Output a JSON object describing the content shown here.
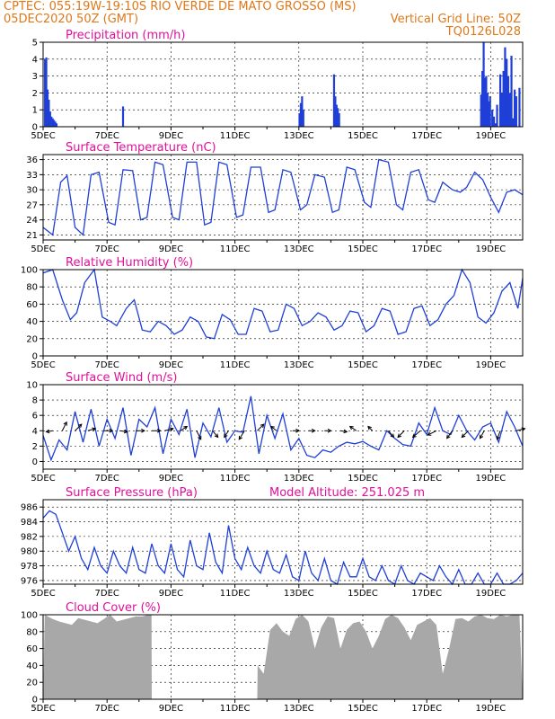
{
  "header": {
    "line1_left": "CPTEC:   055:19W-19:10S  RIO VERDE DE MATO GROSSO (MS)",
    "line2_left": "05DEC2020 50Z (GMT)",
    "line2_right": "Vertical Grid Line: 50Z",
    "line3_right": "TQ0126L028"
  },
  "colors": {
    "header": "#e07818",
    "title": "#e0109a",
    "series": "#1f3fd8",
    "cloud": "#a8a8a8"
  },
  "x_labels": [
    "5DEC",
    "7DEC",
    "9DEC",
    "11DEC",
    "13DEC",
    "15DEC",
    "17DEC",
    "19DEC"
  ],
  "chart_data": [
    {
      "id": "precip",
      "type": "bar",
      "title": "Precipitation (mm/h)",
      "xlabel": "",
      "ylabel": "",
      "ylim": [
        0,
        5
      ],
      "yticks": [
        0,
        1,
        2,
        3,
        4,
        5
      ],
      "xlim": [
        0,
        15
      ],
      "x_unit": "days since 05DEC 00Z",
      "x": [
        0.06,
        0.1,
        0.14,
        0.18,
        0.22,
        0.26,
        0.3,
        0.34,
        0.38,
        0.42,
        2.5,
        8.02,
        8.06,
        8.1,
        8.14,
        9.1,
        9.14,
        9.18,
        9.22,
        9.26,
        13.7,
        13.74,
        13.78,
        13.82,
        13.86,
        13.9,
        13.94,
        13.98,
        14.05,
        14.1,
        14.15,
        14.2,
        14.3,
        14.35,
        14.4,
        14.45,
        14.5,
        14.55,
        14.6,
        14.65,
        14.7,
        14.75,
        14.8,
        14.9
      ],
      "values": [
        4.0,
        4.1,
        2.2,
        1.6,
        0.9,
        0.6,
        0.5,
        0.4,
        0.3,
        0.2,
        1.2,
        0.8,
        1.4,
        1.8,
        1.0,
        3.1,
        1.8,
        1.3,
        1.1,
        0.8,
        1.9,
        3.3,
        5.0,
        2.9,
        3.0,
        2.0,
        1.5,
        1.8,
        1.0,
        0.6,
        0.2,
        1.3,
        3.1,
        2.0,
        3.3,
        4.7,
        4.0,
        3.0,
        2.0,
        4.2,
        0.5,
        2.2,
        1.8,
        2.3
      ]
    },
    {
      "id": "temp",
      "type": "line",
      "title": "Surface Temperature (nC)",
      "xlabel": "",
      "ylabel": "",
      "ylim": [
        20,
        37
      ],
      "yticks": [
        21,
        24,
        27,
        30,
        33,
        36
      ],
      "xlim": [
        0,
        15
      ],
      "x_unit": "days since 05DEC 00Z",
      "x": [
        0,
        0.3,
        0.55,
        0.75,
        1.0,
        1.25,
        1.5,
        1.75,
        2.05,
        2.25,
        2.5,
        2.8,
        3.05,
        3.25,
        3.5,
        3.75,
        4.05,
        4.25,
        4.5,
        4.8,
        5.05,
        5.25,
        5.5,
        5.75,
        6.05,
        6.25,
        6.5,
        6.8,
        7.05,
        7.25,
        7.5,
        7.75,
        8.05,
        8.25,
        8.5,
        8.8,
        9.05,
        9.25,
        9.5,
        9.75,
        10.05,
        10.25,
        10.5,
        10.8,
        11.05,
        11.25,
        11.5,
        11.75,
        12.05,
        12.25,
        12.5,
        12.8,
        13.05,
        13.25,
        13.5,
        13.75,
        14.0,
        14.25,
        14.5,
        14.75,
        15.0
      ],
      "values": [
        22.5,
        21.0,
        31.5,
        32.8,
        22.5,
        21.0,
        33.0,
        33.5,
        23.5,
        23.0,
        34.0,
        33.8,
        24.0,
        24.5,
        35.5,
        35.0,
        24.5,
        24.0,
        35.5,
        35.5,
        23.0,
        23.5,
        35.5,
        35.0,
        24.5,
        25.0,
        34.5,
        34.5,
        25.5,
        26.0,
        34.0,
        33.5,
        26.0,
        27.0,
        33.0,
        32.5,
        25.5,
        26.0,
        34.5,
        34.0,
        27.5,
        26.5,
        36.0,
        35.5,
        27.0,
        26.0,
        33.5,
        34.0,
        28.0,
        27.5,
        31.5,
        30.0,
        29.5,
        30.5,
        33.5,
        32.0,
        28.5,
        25.5,
        29.5,
        30.0,
        29.0
      ]
    },
    {
      "id": "rh",
      "type": "line",
      "title": "Relative Humidity (%)",
      "xlabel": "",
      "ylabel": "",
      "ylim": [
        0,
        100
      ],
      "yticks": [
        0,
        20,
        40,
        60,
        80,
        100
      ],
      "xlim": [
        0,
        15
      ],
      "x_unit": "days since 05DEC 00Z",
      "x": [
        0,
        0.3,
        0.6,
        0.85,
        1.05,
        1.3,
        1.6,
        1.85,
        2.1,
        2.3,
        2.6,
        2.85,
        3.1,
        3.35,
        3.6,
        3.85,
        4.1,
        4.35,
        4.6,
        4.85,
        5.1,
        5.35,
        5.6,
        5.85,
        6.1,
        6.35,
        6.6,
        6.85,
        7.1,
        7.35,
        7.6,
        7.85,
        8.1,
        8.35,
        8.6,
        8.85,
        9.1,
        9.35,
        9.6,
        9.85,
        10.1,
        10.35,
        10.6,
        10.85,
        11.1,
        11.35,
        11.6,
        11.85,
        12.1,
        12.35,
        12.6,
        12.85,
        13.1,
        13.35,
        13.6,
        13.85,
        14.1,
        14.35,
        14.6,
        14.85,
        15.0
      ],
      "values": [
        96,
        100,
        65,
        42,
        50,
        85,
        100,
        45,
        40,
        35,
        55,
        65,
        30,
        28,
        40,
        35,
        25,
        30,
        45,
        40,
        22,
        20,
        48,
        42,
        25,
        25,
        55,
        52,
        28,
        30,
        60,
        55,
        35,
        40,
        50,
        45,
        30,
        35,
        52,
        50,
        28,
        35,
        55,
        52,
        25,
        28,
        55,
        58,
        35,
        42,
        60,
        70,
        100,
        85,
        45,
        38,
        50,
        75,
        85,
        55,
        90
      ]
    },
    {
      "id": "wind",
      "type": "line",
      "title": "Surface Wind (m/s)",
      "xlabel": "",
      "ylabel": "",
      "ylim": [
        -1,
        10
      ],
      "yticks": [
        0,
        2,
        4,
        6,
        8,
        10
      ],
      "xlim": [
        0,
        15
      ],
      "x_unit": "days since 05DEC 00Z",
      "x": [
        0,
        0.25,
        0.5,
        0.75,
        1.0,
        1.25,
        1.5,
        1.75,
        2.0,
        2.25,
        2.5,
        2.75,
        3.0,
        3.25,
        3.5,
        3.75,
        4.0,
        4.25,
        4.5,
        4.75,
        5.0,
        5.25,
        5.5,
        5.75,
        6.0,
        6.25,
        6.5,
        6.75,
        7.0,
        7.25,
        7.5,
        7.75,
        8.0,
        8.25,
        8.5,
        8.75,
        9.0,
        9.25,
        9.5,
        9.75,
        10.0,
        10.25,
        10.5,
        10.75,
        11.0,
        11.25,
        11.5,
        11.75,
        12.0,
        12.25,
        12.5,
        12.75,
        13.0,
        13.25,
        13.5,
        13.75,
        14.0,
        14.25,
        14.5,
        14.75,
        15.0
      ],
      "values": [
        3.4,
        0.2,
        2.8,
        1.5,
        6.5,
        2.5,
        6.8,
        2.0,
        5.5,
        3.0,
        7.0,
        0.8,
        5.5,
        4.5,
        7.0,
        1.0,
        5.5,
        3.5,
        6.8,
        0.5,
        5.0,
        3.2,
        7.0,
        2.5,
        4.0,
        3.8,
        8.5,
        1.0,
        6.0,
        3.0,
        6.2,
        1.5,
        3.0,
        0.8,
        0.5,
        1.5,
        1.2,
        2.0,
        2.5,
        2.3,
        2.6,
        2.0,
        1.5,
        4.0,
        3.0,
        2.2,
        2.0,
        5.0,
        3.5,
        7.0,
        4.0,
        3.5,
        6.0,
        4.0,
        2.8,
        4.5,
        5.0,
        2.5,
        6.5,
        4.5,
        2.0
      ]
    },
    {
      "id": "pressure",
      "type": "line",
      "title": "Surface Pressure (hPa)",
      "subtitle": "Model Altitude: 251.025 m",
      "xlabel": "",
      "ylabel": "",
      "ylim": [
        975.5,
        987
      ],
      "yticks": [
        976,
        978,
        980,
        982,
        984,
        986
      ],
      "xlim": [
        0,
        15
      ],
      "x_unit": "days since 05DEC 00Z",
      "x": [
        0,
        0.2,
        0.4,
        0.6,
        0.8,
        1.0,
        1.2,
        1.4,
        1.6,
        1.8,
        2.0,
        2.2,
        2.4,
        2.6,
        2.8,
        3.0,
        3.2,
        3.4,
        3.6,
        3.8,
        4.0,
        4.2,
        4.4,
        4.6,
        4.8,
        5.0,
        5.2,
        5.4,
        5.6,
        5.8,
        6.0,
        6.2,
        6.4,
        6.6,
        6.8,
        7.0,
        7.2,
        7.4,
        7.6,
        7.8,
        8.0,
        8.2,
        8.4,
        8.6,
        8.8,
        9.0,
        9.2,
        9.4,
        9.6,
        9.8,
        10.0,
        10.2,
        10.4,
        10.6,
        10.8,
        11.0,
        11.2,
        11.4,
        11.6,
        11.8,
        12.0,
        12.2,
        12.4,
        12.6,
        12.8,
        13.0,
        13.2,
        13.4,
        13.6,
        13.8,
        14.0,
        14.2,
        14.4,
        14.6,
        14.8,
        15.0
      ],
      "values": [
        984.5,
        985.5,
        985.0,
        982.5,
        980.0,
        982.0,
        979.0,
        977.5,
        980.5,
        978.0,
        977.0,
        980.0,
        978.0,
        977.0,
        980.5,
        977.5,
        977.0,
        981.0,
        978.0,
        977.0,
        981.0,
        977.5,
        976.5,
        981.5,
        978.0,
        977.5,
        982.5,
        978.5,
        977.0,
        983.5,
        979.0,
        977.5,
        980.5,
        978.0,
        977.0,
        980.0,
        977.5,
        977.0,
        979.5,
        976.5,
        976.0,
        980.0,
        977.0,
        976.0,
        979.0,
        976.0,
        975.5,
        978.5,
        976.5,
        976.5,
        979.0,
        976.5,
        976.0,
        978.0,
        976.0,
        975.5,
        978.0,
        976.0,
        975.5,
        977.0,
        976.5,
        976.0,
        978.0,
        976.5,
        975.5,
        977.5,
        975.5,
        975.0,
        977.0,
        975.5,
        975.5,
        977.0,
        975.5,
        975.0,
        976.0,
        977.0
      ]
    },
    {
      "id": "cloud",
      "type": "area",
      "title": "Cloud Cover (%)",
      "xlabel": "",
      "ylabel": "",
      "ylim": [
        0,
        100
      ],
      "yticks": [
        0,
        20,
        40,
        60,
        80,
        100
      ],
      "xlim": [
        0,
        15
      ],
      "x_unit": "days since 05DEC 00Z",
      "x": [
        0,
        0.05,
        0.3,
        0.5,
        0.7,
        0.9,
        1.1,
        1.3,
        1.5,
        1.7,
        1.9,
        2.1,
        2.3,
        2.5,
        2.7,
        2.9,
        3.1,
        3.3,
        3.39,
        3.4,
        6.7,
        6.71,
        6.9,
        7.1,
        7.3,
        7.5,
        7.7,
        7.9,
        8.1,
        8.3,
        8.5,
        8.7,
        8.9,
        9.1,
        9.3,
        9.5,
        9.7,
        9.9,
        10.1,
        10.3,
        10.5,
        10.7,
        10.9,
        11.1,
        11.3,
        11.5,
        11.7,
        11.9,
        12.1,
        12.3,
        12.5,
        12.7,
        12.9,
        13.1,
        13.3,
        13.5,
        13.7,
        13.9,
        14.1,
        14.3,
        14.5,
        14.7,
        14.9,
        15.0
      ],
      "values": [
        0,
        100,
        95,
        92,
        90,
        88,
        96,
        94,
        92,
        90,
        95,
        100,
        92,
        94,
        96,
        98,
        98,
        100,
        100,
        0,
        0,
        40,
        30,
        82,
        90,
        80,
        75,
        95,
        100,
        92,
        60,
        85,
        98,
        96,
        60,
        82,
        90,
        92,
        80,
        60,
        75,
        95,
        100,
        96,
        85,
        70,
        88,
        92,
        96,
        88,
        30,
        60,
        95,
        96,
        92,
        98,
        100,
        96,
        95,
        100,
        98,
        100,
        100,
        0
      ]
    }
  ],
  "wind_arrows": {
    "x": [
      0.3,
      0.6,
      1.0,
      1.4,
      1.9,
      2.4,
      2.9,
      3.4,
      3.8,
      4.3,
      4.8,
      5.3,
      5.8,
      6.3,
      6.7,
      7.3,
      7.8,
      8.3,
      8.8,
      9.3,
      9.8,
      10.3,
      10.8,
      11.3,
      11.8,
      12.3,
      12.8,
      13.3,
      13.8,
      14.3,
      14.8
    ],
    "u": [
      -0.6,
      0.4,
      0.6,
      0.7,
      0.8,
      0.7,
      0.8,
      0.8,
      0.8,
      0.6,
      0.4,
      0.5,
      -0.4,
      -0.5,
      0.6,
      -0.5,
      0.6,
      0.6,
      0.6,
      0.6,
      -0.6,
      -0.4,
      0.5,
      -0.6,
      -0.7,
      -0.8,
      -0.5,
      -0.6,
      -0.4,
      -0.3,
      0.8
    ],
    "v": [
      -0.1,
      0.8,
      0.6,
      0.2,
      0.0,
      -0.1,
      0.0,
      0.0,
      0.2,
      0.4,
      -0.8,
      -0.6,
      -0.6,
      -0.8,
      0.6,
      0.4,
      0.0,
      0.0,
      0.0,
      -0.1,
      0.4,
      0.4,
      -0.6,
      -0.6,
      -0.6,
      -0.4,
      -0.7,
      -0.6,
      -0.7,
      -0.8,
      0.2
    ]
  }
}
